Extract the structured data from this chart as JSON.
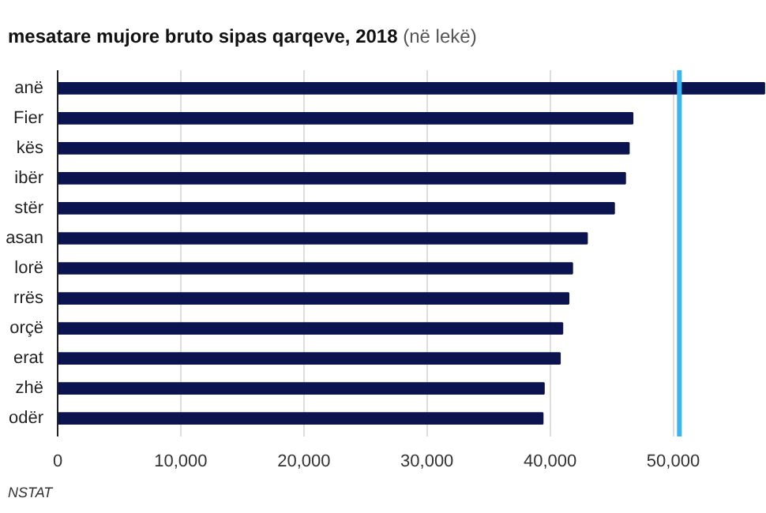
{
  "chart_data": {
    "type": "bar",
    "orientation": "horizontal",
    "title": "mesatare mujore bruto sipas qarqeve, 2018",
    "subtitle": "(në lekë)",
    "categories": [
      "anë",
      "Fier",
      "kës",
      "ibër",
      "stër",
      "asan",
      "lorë",
      "rrës",
      "orçë",
      "erat",
      "zhë",
      "odër"
    ],
    "values": [
      57400,
      46700,
      46400,
      46100,
      45200,
      43000,
      41800,
      41500,
      41000,
      40800,
      39500,
      39400
    ],
    "color": "#0c1450",
    "xlim": [
      0,
      57600
    ],
    "xticks": [
      {
        "value": 0,
        "label": "0"
      },
      {
        "value": 10000,
        "label": "10,000"
      },
      {
        "value": 20000,
        "label": "20,000"
      },
      {
        "value": 30000,
        "label": "30,000"
      },
      {
        "value": 40000,
        "label": "40,000"
      },
      {
        "value": 50000,
        "label": "50,000"
      }
    ],
    "ref_lines": [
      {
        "axis": "x",
        "value": 50500,
        "color": "#3ab4f2"
      }
    ],
    "grid": "x",
    "annotations": [
      "NSTAT"
    ]
  }
}
